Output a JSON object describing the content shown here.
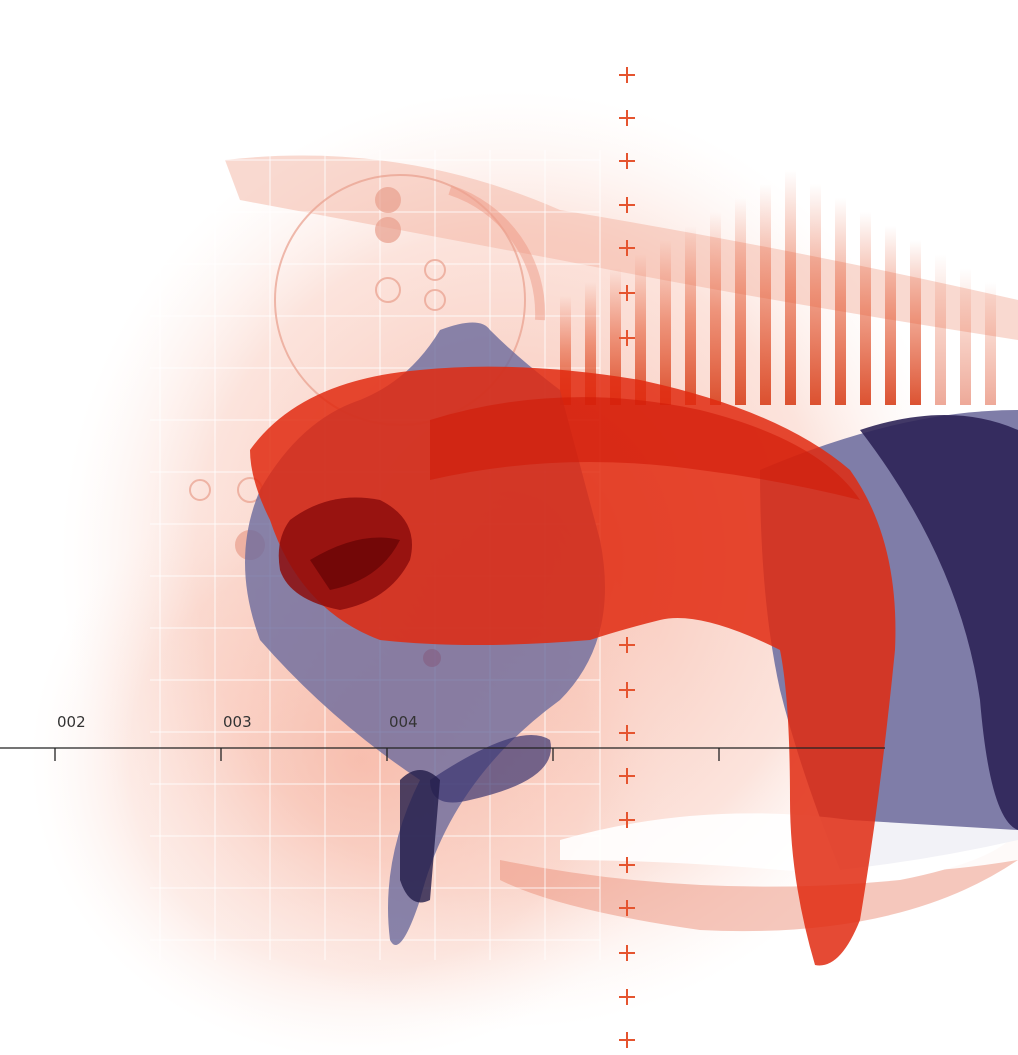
{
  "axis_labels": [
    "002",
    "003",
    "004"
  ]
}
